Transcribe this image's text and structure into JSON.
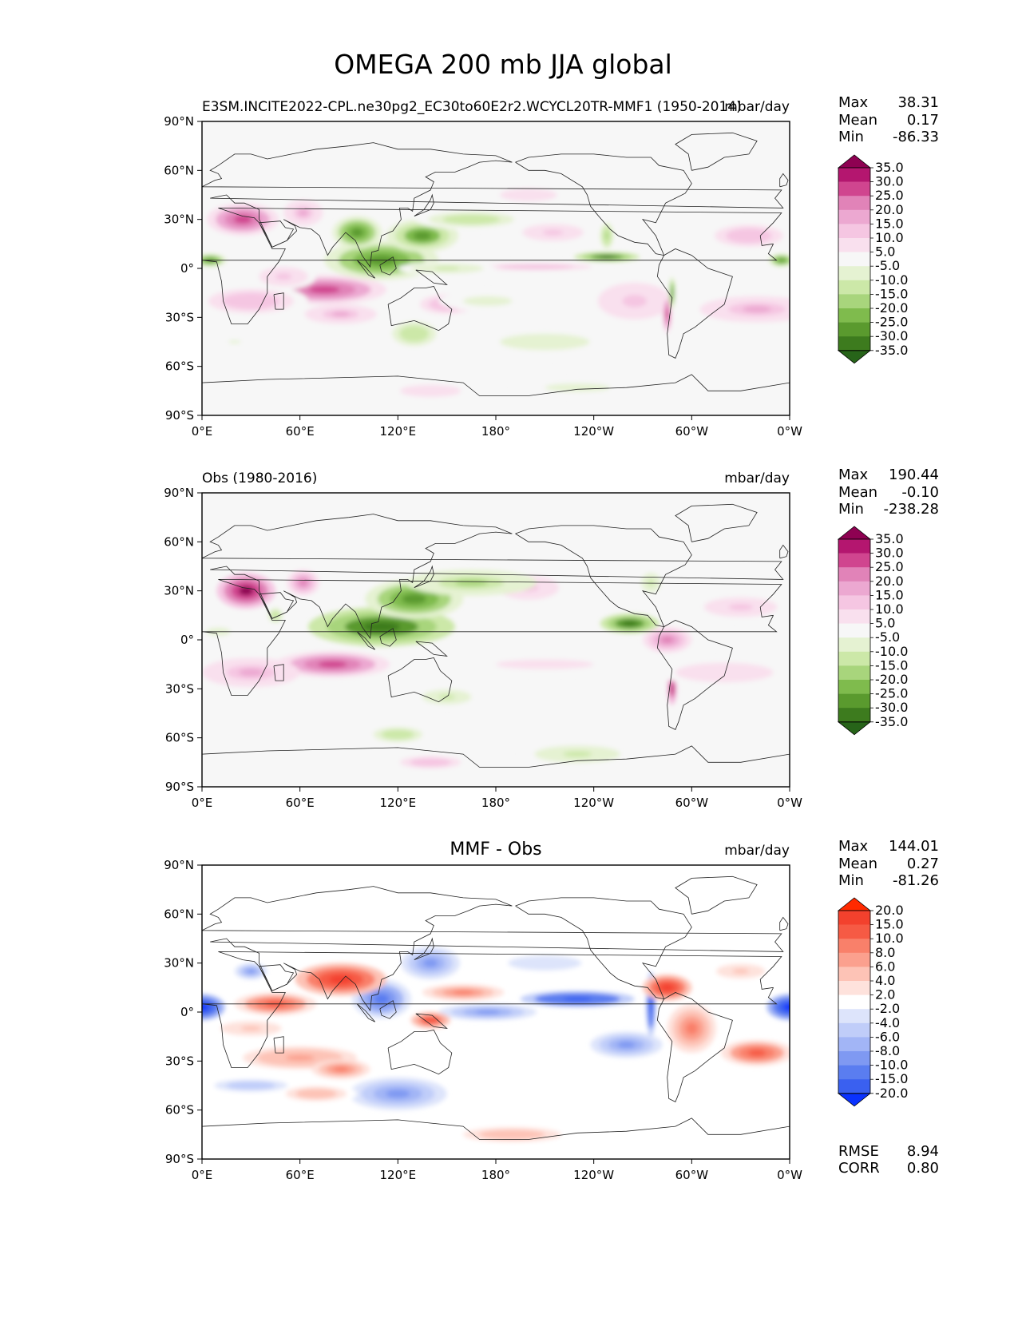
{
  "figure": {
    "title": "OMEGA 200 mb JJA global",
    "stat_labels": {
      "max": "Max",
      "mean": "Mean",
      "min": "Min",
      "rmse": "RMSE",
      "corr": "CORR"
    }
  },
  "axes": {
    "lat_ticks": [
      "90°N",
      "60°N",
      "30°N",
      "0°",
      "30°S",
      "60°S",
      "90°S"
    ],
    "lon_ticks": [
      "0°E",
      "60°E",
      "120°E",
      "180°",
      "120°W",
      "60°W",
      "0°W"
    ]
  },
  "panels": [
    {
      "left_title": "E3SM.INCITE2022-CPL.ne30pg2_EC30to60E2r2.WCYCL20TR-MMF1 (1950-2014)",
      "center_title": "",
      "units": "mbar/day",
      "stats": {
        "max": "38.31",
        "mean": "0.17",
        "min": "-86.33"
      },
      "colorbar": "main"
    },
    {
      "left_title": "Obs (1980-2016)",
      "center_title": "",
      "units": "mbar/day",
      "stats": {
        "max": "190.44",
        "mean": "-0.10",
        "min": "-238.28"
      },
      "colorbar": "main"
    },
    {
      "left_title": "",
      "center_title": "MMF - Obs",
      "units": "mbar/day",
      "stats": {
        "max": "144.01",
        "mean": "0.27",
        "min": "-81.26",
        "rmse": "8.94",
        "corr": "0.80"
      },
      "colorbar": "diff"
    }
  ],
  "colorbars": {
    "main": {
      "levels": [
        "35.0",
        "30.0",
        "25.0",
        "20.0",
        "15.0",
        "10.0",
        "5.0",
        "-5.0",
        "-10.0",
        "-15.0",
        "-20.0",
        "-25.0",
        "-30.0",
        "-35.0"
      ],
      "colors": [
        "#8e0152",
        "#b4166f",
        "#d0458f",
        "#e183b8",
        "#eca8d1",
        "#f5c6e2",
        "#f9e0ee",
        "#f7f7f7",
        "#e5f2d2",
        "#cce8a8",
        "#a8d57c",
        "#7fbb4d",
        "#5a9a2e",
        "#3d7b1e",
        "#276419"
      ]
    },
    "diff": {
      "levels": [
        "20.0",
        "15.0",
        "10.0",
        "8.0",
        "6.0",
        "4.0",
        "2.0",
        "-2.0",
        "-4.0",
        "-6.0",
        "-8.0",
        "-10.0",
        "-15.0",
        "-20.0"
      ],
      "colors": [
        "#ff2a00",
        "#f3412d",
        "#f65a44",
        "#f9806a",
        "#fba08e",
        "#fdc3b6",
        "#fee2dc",
        "#ffffff",
        "#dde4fb",
        "#c0cdf9",
        "#a2b5f6",
        "#7f99f2",
        "#5a7df0",
        "#3a60f0",
        "#0a32ff"
      ]
    }
  },
  "fields": {
    "main": [
      {
        "lon": 25,
        "lat": 30,
        "rx": 22,
        "ry": 10,
        "v": 32
      },
      {
        "lon": 62,
        "lat": 34,
        "rx": 12,
        "ry": 8,
        "v": 18
      },
      {
        "lon": 75,
        "lat": -13,
        "rx": 38,
        "ry": 9,
        "v": 30
      },
      {
        "lon": 30,
        "lat": -20,
        "rx": 35,
        "ry": 10,
        "v": 16
      },
      {
        "lon": 50,
        "lat": -5,
        "rx": 20,
        "ry": 8,
        "v": 12
      },
      {
        "lon": 85,
        "lat": -28,
        "rx": 22,
        "ry": 6,
        "v": 18
      },
      {
        "lon": 150,
        "lat": -22,
        "rx": 22,
        "ry": 8,
        "v": 14
      },
      {
        "lon": 205,
        "lat": 1,
        "rx": 45,
        "ry": 3,
        "v": 14
      },
      {
        "lon": 265,
        "lat": -20,
        "rx": 30,
        "ry": 15,
        "v": 12
      },
      {
        "lon": 340,
        "lat": -25,
        "rx": 35,
        "ry": 8,
        "v": 18
      },
      {
        "lon": 215,
        "lat": 22,
        "rx": 25,
        "ry": 7,
        "v": 12
      },
      {
        "lon": 335,
        "lat": 20,
        "rx": 28,
        "ry": 9,
        "v": 15
      },
      {
        "lon": 285,
        "lat": -28,
        "rx": 3,
        "ry": 12,
        "v": 30
      },
      {
        "lon": 140,
        "lat": -75,
        "rx": 25,
        "ry": 5,
        "v": 10
      },
      {
        "lon": 200,
        "lat": 45,
        "rx": 35,
        "ry": 8,
        "v": 8
      },
      {
        "lon": 110,
        "lat": 5,
        "rx": 35,
        "ry": 12,
        "v": -32
      },
      {
        "lon": 95,
        "lat": 22,
        "rx": 15,
        "ry": 10,
        "v": -30
      },
      {
        "lon": 135,
        "lat": 20,
        "rx": 22,
        "ry": 10,
        "v": -28
      },
      {
        "lon": 165,
        "lat": 30,
        "rx": 35,
        "ry": 6,
        "v": -15
      },
      {
        "lon": 248,
        "lat": 7,
        "rx": 20,
        "ry": 3,
        "v": -38
      },
      {
        "lon": 5,
        "lat": 5,
        "rx": 10,
        "ry": 4,
        "v": -30
      },
      {
        "lon": 355,
        "lat": 5,
        "rx": 8,
        "ry": 4,
        "v": -30
      },
      {
        "lon": 150,
        "lat": 0,
        "rx": 30,
        "ry": 4,
        "v": -12
      },
      {
        "lon": 130,
        "lat": -40,
        "rx": 18,
        "ry": 10,
        "v": -15
      },
      {
        "lon": 210,
        "lat": -45,
        "rx": 55,
        "ry": 10,
        "v": -7
      },
      {
        "lon": 175,
        "lat": -20,
        "rx": 30,
        "ry": 6,
        "v": -7
      },
      {
        "lon": 248,
        "lat": 20,
        "rx": 4,
        "ry": 8,
        "v": -20
      },
      {
        "lon": 288,
        "lat": -15,
        "rx": 2,
        "ry": 10,
        "v": -30
      },
      {
        "lon": 230,
        "lat": -73,
        "rx": 40,
        "ry": 5,
        "v": -7
      },
      {
        "lon": 20,
        "lat": -45,
        "rx": 15,
        "ry": 4,
        "v": -6
      }
    ],
    "obs": [
      {
        "lon": 27,
        "lat": 30,
        "rx": 18,
        "ry": 11,
        "v": 40
      },
      {
        "lon": 62,
        "lat": 35,
        "rx": 10,
        "ry": 8,
        "v": 22
      },
      {
        "lon": 80,
        "lat": -15,
        "rx": 35,
        "ry": 8,
        "v": 30
      },
      {
        "lon": 30,
        "lat": -20,
        "rx": 30,
        "ry": 9,
        "v": 18
      },
      {
        "lon": 200,
        "lat": 32,
        "rx": 25,
        "ry": 10,
        "v": 12
      },
      {
        "lon": 330,
        "lat": 20,
        "rx": 30,
        "ry": 8,
        "v": 12
      },
      {
        "lon": 285,
        "lat": 0,
        "rx": 15,
        "ry": 8,
        "v": 25
      },
      {
        "lon": 288,
        "lat": -30,
        "rx": 3,
        "ry": 10,
        "v": 35
      },
      {
        "lon": 210,
        "lat": -15,
        "rx": 60,
        "ry": 6,
        "v": 8
      },
      {
        "lon": 140,
        "lat": -75,
        "rx": 25,
        "ry": 5,
        "v": 15
      },
      {
        "lon": 320,
        "lat": -20,
        "rx": 40,
        "ry": 8,
        "v": 10
      },
      {
        "lon": 110,
        "lat": 8,
        "rx": 45,
        "ry": 12,
        "v": -35
      },
      {
        "lon": 130,
        "lat": 25,
        "rx": 30,
        "ry": 12,
        "v": -30
      },
      {
        "lon": 165,
        "lat": 35,
        "rx": 40,
        "ry": 8,
        "v": -18
      },
      {
        "lon": 262,
        "lat": 10,
        "rx": 18,
        "ry": 6,
        "v": -35
      },
      {
        "lon": 45,
        "lat": 15,
        "rx": 6,
        "ry": 6,
        "v": -15
      },
      {
        "lon": 150,
        "lat": -35,
        "rx": 20,
        "ry": 6,
        "v": -12
      },
      {
        "lon": 120,
        "lat": -58,
        "rx": 20,
        "ry": 6,
        "v": -15
      },
      {
        "lon": 230,
        "lat": -70,
        "rx": 35,
        "ry": 7,
        "v": -12
      },
      {
        "lon": 10,
        "lat": 5,
        "rx": 15,
        "ry": 5,
        "v": -8
      },
      {
        "lon": 275,
        "lat": 35,
        "rx": 8,
        "ry": 8,
        "v": -12
      }
    ],
    "diff": [
      {
        "lon": 0,
        "lat": 3,
        "rx": 14,
        "ry": 8,
        "v": -22
      },
      {
        "lon": 360,
        "lat": 3,
        "rx": 14,
        "ry": 8,
        "v": -22
      },
      {
        "lon": 230,
        "lat": 8,
        "rx": 35,
        "ry": 5,
        "v": -20
      },
      {
        "lon": 175,
        "lat": 0,
        "rx": 30,
        "ry": 5,
        "v": -10
      },
      {
        "lon": 110,
        "lat": 8,
        "rx": 18,
        "ry": 12,
        "v": -12
      },
      {
        "lon": 140,
        "lat": 30,
        "rx": 18,
        "ry": 10,
        "v": -10
      },
      {
        "lon": 120,
        "lat": -50,
        "rx": 30,
        "ry": 10,
        "v": -10
      },
      {
        "lon": 260,
        "lat": -20,
        "rx": 22,
        "ry": 8,
        "v": -10
      },
      {
        "lon": 30,
        "lat": -45,
        "rx": 30,
        "ry": 5,
        "v": -6
      },
      {
        "lon": 30,
        "lat": 25,
        "rx": 10,
        "ry": 5,
        "v": -10
      },
      {
        "lon": 275,
        "lat": 5,
        "rx": 3,
        "ry": 20,
        "v": -20
      },
      {
        "lon": 85,
        "lat": 20,
        "rx": 28,
        "ry": 10,
        "v": 18
      },
      {
        "lon": 45,
        "lat": 5,
        "rx": 25,
        "ry": 7,
        "v": 12
      },
      {
        "lon": 160,
        "lat": 12,
        "rx": 25,
        "ry": 5,
        "v": 10
      },
      {
        "lon": 140,
        "lat": -5,
        "rx": 12,
        "ry": 5,
        "v": 15
      },
      {
        "lon": 285,
        "lat": 15,
        "rx": 15,
        "ry": 8,
        "v": 18
      },
      {
        "lon": 300,
        "lat": -10,
        "rx": 15,
        "ry": 15,
        "v": 10
      },
      {
        "lon": 340,
        "lat": -25,
        "rx": 22,
        "ry": 8,
        "v": 12
      },
      {
        "lon": 60,
        "lat": -28,
        "rx": 35,
        "ry": 7,
        "v": 8
      },
      {
        "lon": 85,
        "lat": -35,
        "rx": 18,
        "ry": 6,
        "v": 10
      },
      {
        "lon": 70,
        "lat": -50,
        "rx": 25,
        "ry": 6,
        "v": 6
      },
      {
        "lon": 190,
        "lat": -75,
        "rx": 40,
        "ry": 6,
        "v": 6
      },
      {
        "lon": 30,
        "lat": -10,
        "rx": 25,
        "ry": 6,
        "v": 5
      },
      {
        "lon": 210,
        "lat": 30,
        "rx": 30,
        "ry": 6,
        "v": -4
      },
      {
        "lon": 330,
        "lat": 25,
        "rx": 20,
        "ry": 6,
        "v": 5
      }
    ]
  }
}
